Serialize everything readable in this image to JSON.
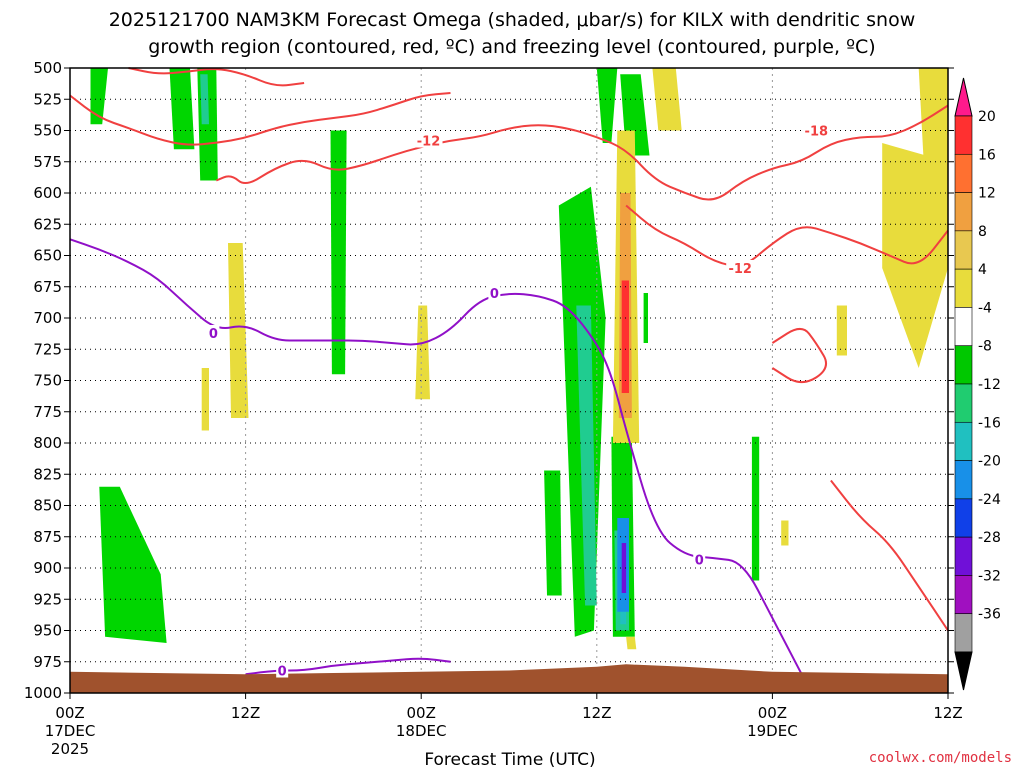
{
  "chart_data": {
    "type": "heatmap",
    "title_line1": "2025121700 NAM3KM Forecast Omega (shaded, μbar/s) for KILX with dendritic snow",
    "title_line2": "growth region (contoured, red, ºC) and freezing level (contoured, purple, ºC)",
    "xlabel": "Forecast Time (UTC)",
    "credit": "coolwx.com/models",
    "x_ticks": [
      {
        "h": 0,
        "label": "00Z",
        "sub1": "17DEC",
        "sub2": "2025"
      },
      {
        "h": 12,
        "label": "12Z",
        "sub1": "",
        "sub2": ""
      },
      {
        "h": 24,
        "label": "00Z",
        "sub1": "18DEC",
        "sub2": ""
      },
      {
        "h": 36,
        "label": "12Z",
        "sub1": "",
        "sub2": ""
      },
      {
        "h": 48,
        "label": "00Z",
        "sub1": "19DEC",
        "sub2": ""
      },
      {
        "h": 60,
        "label": "12Z",
        "sub1": "",
        "sub2": ""
      }
    ],
    "xlim_hours": [
      0,
      60
    ],
    "y_ticks": [
      500,
      525,
      550,
      575,
      600,
      625,
      650,
      675,
      700,
      725,
      750,
      775,
      800,
      825,
      850,
      875,
      900,
      925,
      950,
      975,
      1000
    ],
    "ylim_hpa": [
      500,
      1000
    ],
    "grid": true,
    "colorbar": {
      "labels": [
        "20",
        "16",
        "12",
        "8",
        "4",
        "-4",
        "-8",
        "-12",
        "-16",
        "-20",
        "-24",
        "-28",
        "-32",
        "-36"
      ],
      "colors": [
        "#ff1a8c",
        "#ff3030",
        "#ff7030",
        "#f0a040",
        "#e8c850",
        "#e8dc3c",
        "#ffffff",
        "#00c800",
        "#20cc70",
        "#20c0c0",
        "#1890e8",
        "#1040e8",
        "#7010d8",
        "#a010c0",
        "#a0a0a0",
        "#000000"
      ]
    },
    "shading": [
      {
        "color": "#00d600",
        "h": [
          1.4,
          2.6,
          2.2,
          1.4
        ],
        "p": [
          500,
          500,
          545,
          545
        ]
      },
      {
        "color": "#00d600",
        "h": [
          6.8,
          8.2,
          8.5,
          7.1
        ],
        "p": [
          500,
          500,
          565,
          565
        ]
      },
      {
        "color": "#00d600",
        "h": [
          8.7,
          10.0,
          10.1,
          8.9
        ],
        "p": [
          500,
          500,
          590,
          590
        ]
      },
      {
        "color": "#20cc90",
        "h": [
          8.9,
          9.4,
          9.5,
          9.0
        ],
        "p": [
          505,
          505,
          545,
          545
        ]
      },
      {
        "color": "#00d600",
        "h": [
          17.8,
          18.9,
          18.8,
          17.9
        ],
        "p": [
          550,
          550,
          745,
          745
        ]
      },
      {
        "color": "#00d600",
        "h": [
          36.0,
          37.4,
          37.0,
          36.4
        ],
        "p": [
          500,
          500,
          560,
          560
        ]
      },
      {
        "color": "#00d600",
        "h": [
          37.6,
          39.0,
          39.6,
          38.0
        ],
        "p": [
          505,
          505,
          570,
          570
        ]
      },
      {
        "color": "#00d600",
        "h": [
          33.4,
          35.6,
          36.6,
          35.8,
          34.5,
          33.7
        ],
        "p": [
          610,
          595,
          700,
          950,
          955,
          700
        ]
      },
      {
        "color": "#20cc90",
        "h": [
          34.6,
          35.6,
          36.0,
          35.2
        ],
        "p": [
          690,
          690,
          930,
          930
        ]
      },
      {
        "color": "#00d600",
        "h": [
          32.4,
          33.5,
          33.6,
          32.6
        ],
        "p": [
          822,
          822,
          922,
          922
        ]
      },
      {
        "color": "#00d600",
        "h": [
          37.0,
          38.4,
          38.6,
          37.1
        ],
        "p": [
          795,
          795,
          955,
          955
        ]
      },
      {
        "color": "#20cc90",
        "h": [
          37.2,
          38.2,
          38.2,
          37.3
        ],
        "p": [
          870,
          870,
          950,
          950
        ]
      },
      {
        "color": "#20c0c0",
        "h": [
          37.6,
          38.0,
          38.0,
          37.6
        ],
        "p": [
          860,
          860,
          945,
          945
        ]
      },
      {
        "color": "#1890e8",
        "h": [
          37.4,
          38.2,
          38.2,
          37.4
        ],
        "p": [
          860,
          860,
          935,
          935
        ]
      },
      {
        "color": "#7010d8",
        "h": [
          37.7,
          38.0,
          38.0,
          37.7
        ],
        "p": [
          880,
          880,
          920,
          920
        ]
      },
      {
        "color": "#00d600",
        "h": [
          2.0,
          3.4,
          6.2,
          6.6,
          2.4
        ],
        "p": [
          835,
          835,
          905,
          960,
          955
        ]
      },
      {
        "color": "#00d600",
        "h": [
          46.6,
          47.1,
          47.1,
          46.6
        ],
        "p": [
          795,
          795,
          910,
          910
        ]
      },
      {
        "color": "#00d600",
        "h": [
          39.2,
          39.5,
          39.5,
          39.2
        ],
        "p": [
          680,
          680,
          720,
          720
        ]
      },
      {
        "color": "#e8dc3c",
        "h": [
          39.8,
          41.4,
          41.8,
          40.2
        ],
        "p": [
          500,
          500,
          550,
          550
        ]
      },
      {
        "color": "#e8dc3c",
        "h": [
          37.4,
          38.6,
          38.9,
          37.1
        ],
        "p": [
          550,
          550,
          800,
          800
        ]
      },
      {
        "color": "#f0a040",
        "h": [
          37.6,
          38.3,
          38.4,
          37.5
        ],
        "p": [
          600,
          600,
          780,
          780
        ]
      },
      {
        "color": "#ff3030",
        "h": [
          37.7,
          38.2,
          38.2,
          37.7
        ],
        "p": [
          670,
          670,
          760,
          760
        ]
      },
      {
        "color": "#e8dc3c",
        "h": [
          58.0,
          60.0,
          60.0,
          58.5
        ],
        "p": [
          500,
          500,
          610,
          610
        ]
      },
      {
        "color": "#e8dc3c",
        "h": [
          55.5,
          58.5,
          60.0,
          60.0,
          58.0,
          55.5
        ],
        "p": [
          560,
          570,
          600,
          660,
          740,
          660
        ]
      },
      {
        "color": "#e8dc3c",
        "h": [
          10.8,
          11.8,
          12.2,
          11.0
        ],
        "p": [
          640,
          640,
          780,
          780
        ]
      },
      {
        "color": "#e8dc3c",
        "h": [
          23.8,
          24.4,
          24.6,
          23.6
        ],
        "p": [
          690,
          690,
          765,
          765
        ]
      },
      {
        "color": "#e8dc3c",
        "h": [
          52.4,
          53.1,
          53.1,
          52.4
        ],
        "p": [
          690,
          690,
          730,
          730
        ]
      },
      {
        "color": "#e8dc3c",
        "h": [
          48.6,
          49.1,
          49.1,
          48.6
        ],
        "p": [
          862,
          862,
          882,
          882
        ]
      },
      {
        "color": "#e8dc3c",
        "h": [
          9.0,
          9.5,
          9.5,
          9.0
        ],
        "p": [
          740,
          740,
          790,
          790
        ]
      },
      {
        "color": "#e8dc3c",
        "h": [
          38.0,
          38.6,
          38.7,
          38.1
        ],
        "p": [
          955,
          955,
          965,
          965
        ]
      }
    ],
    "contours_red": [
      {
        "h": [
          0,
          2,
          4,
          6,
          8,
          10,
          12,
          14,
          16,
          18,
          20,
          22,
          24,
          26
        ],
        "p": [
          522,
          540,
          548,
          557,
          562,
          560,
          556,
          548,
          543,
          540,
          537,
          530,
          522,
          520
        ]
      },
      {
        "h": [
          10,
          11,
          12,
          14,
          16,
          18,
          20,
          22,
          24,
          26,
          28,
          30,
          32,
          34,
          36,
          38,
          40,
          42,
          44,
          46,
          48,
          50,
          52,
          54,
          56,
          58,
          60
        ],
        "p": [
          590,
          585,
          595,
          580,
          572,
          583,
          578,
          570,
          563,
          558,
          555,
          548,
          545,
          548,
          555,
          565,
          590,
          600,
          608,
          590,
          580,
          575,
          560,
          555,
          555,
          545,
          530
        ]
      },
      {
        "h": [
          38,
          40,
          42,
          44,
          46,
          48,
          50,
          52,
          54,
          56,
          58,
          60
        ],
        "p": [
          610,
          630,
          640,
          655,
          660,
          640,
          625,
          632,
          640,
          650,
          660,
          630
        ]
      },
      {
        "h": [
          48,
          50,
          51,
          52,
          50,
          48
        ],
        "p": [
          720,
          705,
          720,
          740,
          755,
          740
        ]
      },
      {
        "h": [
          52,
          54,
          56,
          58,
          60
        ],
        "p": [
          830,
          860,
          880,
          915,
          950
        ]
      },
      {
        "h": [
          4,
          6,
          8,
          10,
          12,
          14,
          16
        ],
        "p": [
          500,
          505,
          503,
          500,
          505,
          515,
          512
        ]
      }
    ],
    "contours_purple": [
      {
        "h": [
          0,
          2,
          4,
          6,
          8,
          10,
          12,
          14,
          16,
          18,
          20,
          22,
          24,
          26,
          28,
          30,
          32,
          34,
          36,
          37,
          38,
          40,
          42,
          44,
          46,
          48,
          50
        ],
        "p": [
          637,
          645,
          655,
          668,
          690,
          710,
          705,
          718,
          718,
          718,
          718,
          720,
          722,
          710,
          685,
          680,
          682,
          690,
          720,
          745,
          790,
          870,
          890,
          892,
          895,
          940,
          985
        ]
      },
      {
        "h": [
          12,
          14,
          16,
          18,
          20,
          22,
          24,
          26
        ],
        "p": [
          985,
          982,
          982,
          978,
          976,
          974,
          972,
          975
        ]
      }
    ],
    "contour_labels": [
      {
        "text": "-12",
        "h": 24.5,
        "p": 558,
        "color": "red"
      },
      {
        "text": "-18",
        "h": 51.0,
        "p": 550,
        "color": "red"
      },
      {
        "text": "-12",
        "h": 45.8,
        "p": 660,
        "color": "red"
      },
      {
        "text": "0",
        "h": 29.0,
        "p": 680,
        "color": "purple"
      },
      {
        "text": "0",
        "h": 9.8,
        "p": 712,
        "color": "purple"
      },
      {
        "text": "0",
        "h": 14.5,
        "p": 982,
        "color": "purple"
      },
      {
        "text": "0",
        "h": 43.0,
        "p": 893,
        "color": "purple"
      }
    ],
    "terrain": {
      "color": "#a0522d",
      "h": [
        0,
        12,
        18,
        24,
        30,
        36,
        38,
        42,
        48,
        54,
        60
      ],
      "p": [
        983,
        985,
        984,
        983,
        982,
        979,
        977,
        979,
        983,
        984,
        985
      ]
    }
  }
}
